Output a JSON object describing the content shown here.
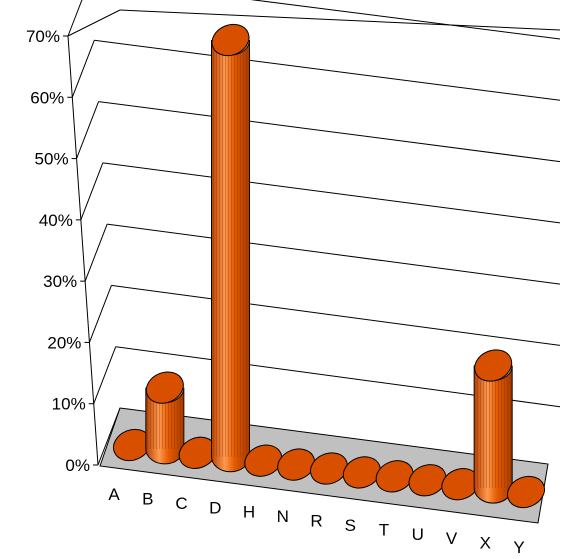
{
  "chart_data": {
    "type": "bar",
    "style": "3d-cylinder",
    "categories": [
      "A",
      "B",
      "C",
      "D",
      "H",
      "N",
      "R",
      "S",
      "T",
      "U",
      "V",
      "X",
      "Y"
    ],
    "values": [
      0,
      10,
      0,
      68,
      0,
      0,
      0,
      0,
      0,
      0,
      0,
      20,
      0
    ],
    "y_tick_labels": [
      "0%",
      "10%",
      "20%",
      "30%",
      "40%",
      "50%",
      "60%",
      "70%"
    ],
    "ylim": [
      0,
      70
    ],
    "y_unit": "percent",
    "grid": true,
    "legend": "none",
    "colors": {
      "bar_fill": "#e55a00",
      "bar_top": "#d84f00",
      "bar_highlight": "#ffa060",
      "floor": "#c0c0c0",
      "gridline": "#000000"
    }
  }
}
